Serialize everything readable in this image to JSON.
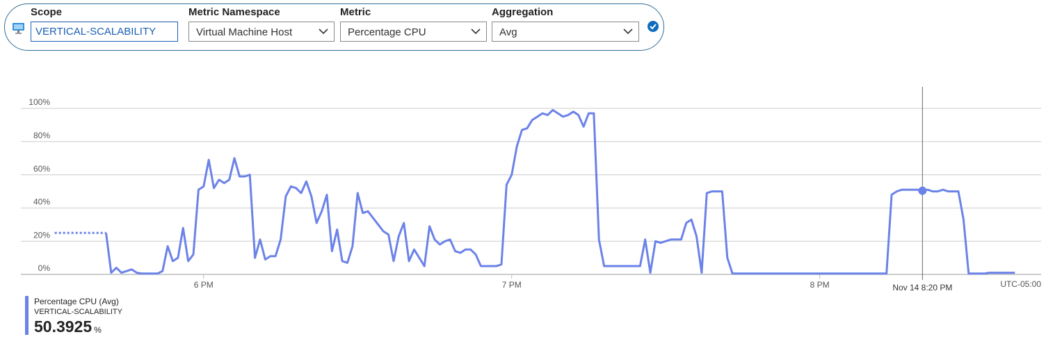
{
  "toolbar": {
    "scope": {
      "label": "Scope",
      "value": "VERTICAL-SCALABILITY"
    },
    "namespace": {
      "label": "Metric Namespace",
      "value": "Virtual Machine Host"
    },
    "metric": {
      "label": "Metric",
      "value": "Percentage CPU"
    },
    "aggregation": {
      "label": "Aggregation",
      "value": "Avg"
    }
  },
  "chart_data": {
    "type": "line",
    "x": [
      1051,
      1061,
      1062,
      1063,
      1064,
      1065,
      1066,
      1067,
      1068,
      1069,
      1070,
      1071,
      1072,
      1073,
      1074,
      1075,
      1076,
      1077,
      1078,
      1079,
      1080,
      1081,
      1082,
      1083,
      1084,
      1085,
      1086,
      1087,
      1088,
      1089,
      1090,
      1091,
      1092,
      1093,
      1094,
      1095,
      1096,
      1097,
      1098,
      1099,
      1100,
      1101,
      1102,
      1103,
      1104,
      1105,
      1106,
      1107,
      1108,
      1109,
      1110,
      1111,
      1112,
      1113,
      1114,
      1115,
      1116,
      1117,
      1118,
      1119,
      1120,
      1121,
      1122,
      1123,
      1124,
      1125,
      1126,
      1127,
      1128,
      1129,
      1130,
      1131,
      1132,
      1133,
      1134,
      1135,
      1136,
      1137,
      1138,
      1139,
      1140,
      1141,
      1142,
      1143,
      1144,
      1145,
      1146,
      1147,
      1148,
      1149,
      1150,
      1151,
      1152,
      1153,
      1154,
      1155,
      1156,
      1157,
      1158,
      1159,
      1160,
      1161,
      1162,
      1163,
      1164,
      1165,
      1166,
      1167,
      1168,
      1169,
      1170,
      1171,
      1172,
      1173,
      1174,
      1175,
      1176,
      1177,
      1178,
      1179,
      1180,
      1181,
      1182,
      1183,
      1184,
      1185,
      1186,
      1187,
      1188,
      1189,
      1190,
      1191,
      1192,
      1193,
      1194,
      1195,
      1196,
      1197,
      1198,
      1199,
      1200,
      1201,
      1202,
      1203,
      1204,
      1205,
      1206,
      1207,
      1208,
      1209,
      1210,
      1211,
      1212,
      1213,
      1214,
      1215,
      1216,
      1217,
      1218,
      1219,
      1220,
      1221,
      1222,
      1223,
      1224,
      1225,
      1226,
      1227,
      1228,
      1229,
      1230,
      1231,
      1232,
      1233,
      1234,
      1235,
      1236,
      1237,
      1238
    ],
    "series": [
      {
        "name": "Percentage CPU (Avg)",
        "color": "#6b82e8",
        "values": [
          25,
          25,
          1,
          4,
          1,
          2,
          3,
          1,
          0.5,
          0.5,
          0.5,
          0.5,
          2,
          17,
          8,
          10,
          28,
          8,
          12,
          51,
          53,
          69,
          52,
          57,
          55,
          57,
          70,
          59,
          59,
          60,
          10,
          21,
          9,
          11,
          11,
          21,
          47,
          53,
          52,
          49,
          56,
          47,
          31,
          38,
          48,
          14,
          27,
          8,
          7,
          17,
          49,
          37,
          38,
          34,
          30,
          26,
          24,
          8,
          23,
          31,
          8,
          15,
          10,
          5,
          29,
          21,
          18,
          20,
          21,
          14,
          13,
          15,
          15,
          12,
          5,
          5,
          5,
          5,
          6,
          54,
          60,
          77,
          87,
          88,
          93,
          95,
          97,
          96,
          99,
          97,
          95,
          96,
          98,
          96,
          89,
          97,
          97,
          21,
          5,
          5,
          5,
          5,
          5,
          5,
          5,
          5,
          21,
          1,
          20,
          19,
          20,
          21,
          21,
          21,
          31,
          33,
          23,
          1,
          49,
          50,
          50,
          50,
          10,
          0.5,
          0.5,
          0.5,
          0.5,
          0.5,
          0.5,
          0.5,
          0.5,
          0.5,
          0.5,
          0.5,
          0.5,
          0.5,
          0.5,
          0.5,
          0.5,
          0.5,
          0.5,
          0.5,
          0.5,
          0.5,
          0.5,
          0.5,
          0.5,
          0.5,
          0.5,
          0.5,
          0.5,
          0.5,
          0.5,
          0.5,
          48,
          50,
          51,
          51,
          51,
          51,
          50.3925,
          51,
          50,
          50,
          51,
          50,
          50,
          50,
          33,
          0.5,
          0.5,
          0.5,
          0.5,
          1,
          1,
          1,
          1,
          1,
          1
        ]
      }
    ],
    "resource": "VERTICAL-SCALABILITY",
    "xlim": [
      1044,
      1240
    ],
    "xticks": [
      {
        "value": 1080,
        "label": "6 PM"
      },
      {
        "value": 1140,
        "label": "7 PM"
      },
      {
        "value": 1200,
        "label": "8 PM"
      }
    ],
    "ylim": [
      0,
      100
    ],
    "yticks": [
      {
        "value": 0,
        "label": "0%"
      },
      {
        "value": 20,
        "label": "20%"
      },
      {
        "value": 40,
        "label": "40%"
      },
      {
        "value": 60,
        "label": "60%"
      },
      {
        "value": 80,
        "label": "80%"
      },
      {
        "value": 100,
        "label": "100%"
      }
    ],
    "grid": true,
    "timezone": "UTC-05:00",
    "cursor": {
      "x": 1220,
      "label": "Nov 14 8:20 PM",
      "value": 50.3925,
      "unit": "%"
    }
  }
}
